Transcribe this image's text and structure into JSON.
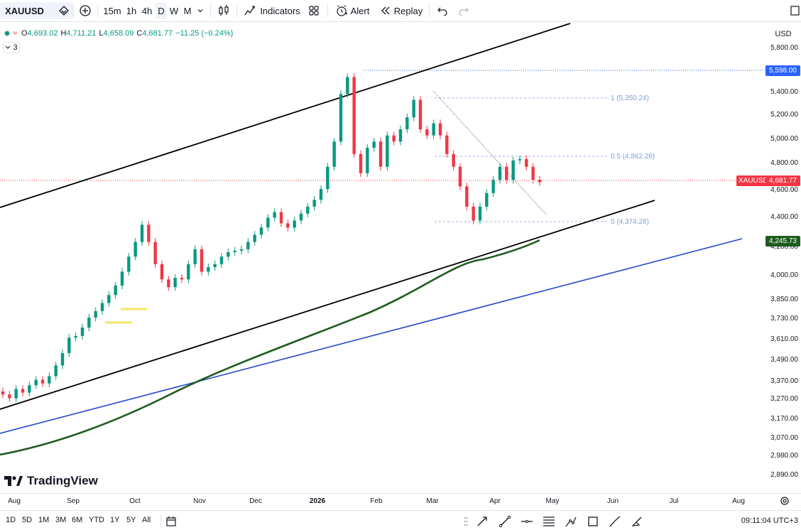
{
  "toolbar": {
    "symbol": "XAUUSD",
    "timeframes": [
      "15m",
      "1h",
      "4h",
      "D",
      "W",
      "M"
    ],
    "active_timeframe": "D",
    "indicators_label": "Indicators",
    "alert_label": "Alert",
    "replay_label": "Replay"
  },
  "legend": {
    "open_label": "O",
    "open": "4,693.02",
    "high_label": "H",
    "high": "4,711.21",
    "low_label": "L",
    "low": "4,658.09",
    "close_label": "C",
    "close": "4,681.77",
    "change": "−11.25 (−0.24%)",
    "indicator_count": "3"
  },
  "price_axis": {
    "currency": "USD",
    "labels": [
      "5,800.00",
      "5,400.00",
      "5,200.00",
      "5,000.00",
      "4,800.00",
      "4,600.00",
      "4,400.00",
      "4,200.00",
      "4,000.00",
      "3,850.00",
      "3,730.00",
      "3,610.00",
      "3,490.00",
      "3,370.00",
      "3,270.00",
      "3,170.00",
      "3,070.00",
      "2,980.00",
      "2,890.00"
    ],
    "high_tag": "5,598.00",
    "current_symbol": "XAUUSD",
    "current_price": "4,681.77",
    "ma_price": "4,245.73"
  },
  "fibonacci": {
    "level_1": "1 (5,350.24)",
    "level_05": "0.5 (4,862.26)",
    "level_0": "0 (4,374.28)"
  },
  "time_axis": {
    "labels": [
      "Aug",
      "Sep",
      "Oct",
      "Nov",
      "Dec",
      "2026",
      "Feb",
      "Mar",
      "Apr",
      "May",
      "Jun",
      "Jul",
      "Aug"
    ]
  },
  "branding": {
    "logo_text": "TradingView"
  },
  "bottom_bar": {
    "ranges": [
      "1D",
      "5D",
      "1M",
      "3M",
      "6M",
      "YTD",
      "1Y",
      "5Y",
      "All"
    ],
    "clock": "09:11:04 UTC+3"
  },
  "colors": {
    "up": "#089981",
    "down": "#f23645",
    "channel": "#000000",
    "ma": "#1e5b1e",
    "trend_blue": "#2549c9",
    "high_tag": "#2962ff"
  },
  "chart_data": {
    "type": "candlestick",
    "symbol": "XAUUSD",
    "interval": "D",
    "scale": "log",
    "price_range": [
      2850,
      5950
    ],
    "current_price": 4681.77,
    "high_marker": 5598.0,
    "moving_average_last": 4245.73,
    "fibonacci_levels": [
      {
        "ratio": 1,
        "price": 5350.24
      },
      {
        "ratio": 0.5,
        "price": 4862.26
      },
      {
        "ratio": 0,
        "price": 4374.28
      }
    ],
    "closes_path": [
      3320,
      3300,
      3350,
      3330,
      3370,
      3400,
      3380,
      3420,
      3480,
      3550,
      3640,
      3650,
      3700,
      3760,
      3800,
      3850,
      3900,
      3960,
      4050,
      4150,
      4250,
      4370,
      4250,
      4100,
      4000,
      3950,
      4010,
      4000,
      4100,
      4200,
      4050,
      4080,
      4100,
      4150,
      4180,
      4190,
      4200,
      4250,
      4300,
      4350,
      4420,
      4460,
      4380,
      4350,
      4400,
      4450,
      4500,
      4550,
      4630,
      4800,
      5000,
      5400,
      5550,
      4900,
      4750,
      4950,
      5000,
      4800,
      5050,
      5000,
      5100,
      5200,
      5350,
      5100,
      5050,
      5150,
      5050,
      4900,
      4800,
      4650,
      4500,
      4400,
      4500,
      4600,
      4700,
      4800,
      4700,
      4850,
      4860,
      4800,
      4700,
      4681.77
    ]
  }
}
